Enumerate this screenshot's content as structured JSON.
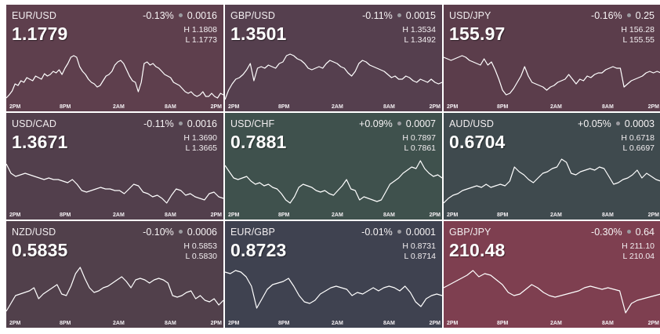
{
  "axis_labels": [
    "2PM",
    "8PM",
    "2AM",
    "8AM",
    "2PM"
  ],
  "tiles": [
    {
      "pair": "EUR/USD",
      "price": "1.1779",
      "change_pct": "-0.13%",
      "change_abs": "0.0016",
      "high": "H 1.1808",
      "low": "L 1.1773",
      "bg": "#5e3f4d",
      "points": [
        64,
        60,
        55,
        46,
        48,
        42,
        44,
        38,
        40,
        42,
        36,
        38,
        40,
        33,
        36,
        34,
        30,
        32,
        28,
        34,
        26,
        20,
        12,
        10,
        12,
        24,
        30,
        34,
        40,
        44,
        46,
        50,
        48,
        42,
        36,
        34,
        30,
        22,
        18,
        16,
        20,
        28,
        36,
        42,
        44,
        56,
        44,
        20,
        18,
        22,
        20,
        24,
        26,
        30,
        34,
        36,
        38,
        44,
        46,
        48,
        52,
        56,
        58,
        56,
        60,
        62,
        60,
        56,
        62,
        62,
        58,
        62,
        64,
        58,
        60
      ]
    },
    {
      "pair": "GBP/USD",
      "price": "1.3501",
      "change_pct": "-0.11%",
      "change_abs": "0.0015",
      "high": "H 1.3534",
      "low": "L 1.3492",
      "bg": "#553f4e",
      "points": [
        66,
        54,
        46,
        40,
        38,
        34,
        28,
        20,
        42,
        26,
        24,
        26,
        22,
        24,
        26,
        20,
        18,
        10,
        8,
        10,
        14,
        16,
        20,
        26,
        28,
        26,
        24,
        26,
        20,
        16,
        18,
        20,
        24,
        26,
        32,
        36,
        30,
        20,
        16,
        18,
        22,
        24,
        26,
        28,
        30,
        34,
        38,
        36,
        40,
        40,
        36,
        38,
        42,
        44,
        40,
        42,
        44,
        40,
        44,
        46,
        44
      ]
    },
    {
      "pair": "USD/JPY",
      "price": "155.97",
      "change_pct": "-0.16%",
      "change_abs": "0.25",
      "high": "H 156.28",
      "low": "L 155.55",
      "bg": "#5b3d4b",
      "points": [
        12,
        14,
        16,
        14,
        12,
        10,
        12,
        16,
        18,
        20,
        22,
        14,
        22,
        18,
        28,
        40,
        54,
        60,
        58,
        52,
        44,
        36,
        24,
        36,
        44,
        46,
        48,
        50,
        54,
        50,
        48,
        44,
        42,
        40,
        34,
        40,
        46,
        40,
        42,
        36,
        38,
        34,
        32,
        32,
        28,
        26,
        24,
        26,
        26,
        50,
        46,
        42,
        40,
        38,
        36,
        32,
        30,
        32,
        30,
        32
      ]
    },
    {
      "pair": "USD/CAD",
      "price": "1.3671",
      "change_pct": "-0.11%",
      "change_abs": "0.0016",
      "high": "H 1.3690",
      "low": "L 1.3665",
      "bg": "#523f4c",
      "points": [
        10,
        22,
        26,
        24,
        22,
        24,
        26,
        28,
        30,
        28,
        30,
        30,
        32,
        34,
        30,
        36,
        44,
        46,
        44,
        42,
        40,
        42,
        42,
        44,
        44,
        48,
        42,
        36,
        38,
        46,
        48,
        52,
        50,
        54,
        60,
        50,
        42,
        44,
        50,
        48,
        52,
        54,
        56,
        48,
        46,
        52,
        54
      ]
    },
    {
      "pair": "USD/CHF",
      "price": "0.7881",
      "change_pct": "+0.09%",
      "change_abs": "0.0007",
      "high": "H 0.7897",
      "low": "L 0.7861",
      "bg": "#3f514d",
      "points": [
        12,
        20,
        28,
        30,
        28,
        26,
        32,
        36,
        34,
        38,
        36,
        40,
        42,
        48,
        56,
        60,
        52,
        40,
        36,
        38,
        40,
        44,
        46,
        44,
        48,
        50,
        44,
        38,
        30,
        42,
        44,
        56,
        52,
        54,
        56,
        58,
        56,
        46,
        36,
        32,
        28,
        22,
        18,
        14,
        16,
        6,
        16,
        22,
        26,
        24,
        28
      ]
    },
    {
      "pair": "AUD/USD",
      "price": "0.6704",
      "change_pct": "+0.05%",
      "change_abs": "0.0003",
      "high": "H 0.6718",
      "low": "L 0.6697",
      "bg": "#3f4a4e",
      "points": [
        60,
        54,
        50,
        48,
        44,
        42,
        40,
        38,
        40,
        36,
        40,
        38,
        36,
        38,
        32,
        14,
        20,
        24,
        30,
        34,
        28,
        22,
        20,
        16,
        14,
        4,
        8,
        22,
        24,
        20,
        18,
        16,
        18,
        14,
        16,
        26,
        36,
        34,
        30,
        28,
        24,
        18,
        28,
        22,
        26,
        30,
        32
      ]
    },
    {
      "pair": "NZD/USD",
      "price": "0.5835",
      "change_pct": "-0.10%",
      "change_abs": "0.0006",
      "high": "H 0.5853",
      "low": "L 0.5830",
      "bg": "#51404b",
      "points": [
        60,
        50,
        40,
        38,
        36,
        34,
        30,
        44,
        38,
        34,
        30,
        26,
        38,
        40,
        28,
        12,
        4,
        18,
        30,
        36,
        34,
        30,
        28,
        24,
        20,
        16,
        22,
        30,
        20,
        18,
        20,
        24,
        20,
        18,
        20,
        24,
        40,
        42,
        40,
        36,
        34,
        44,
        40,
        46,
        48,
        44,
        52,
        46
      ]
    },
    {
      "pair": "EUR/GBP",
      "price": "0.8723",
      "change_pct": "-0.01%",
      "change_abs": "0.0001",
      "high": "H 0.8731",
      "low": "L 0.8714",
      "bg": "#3f4250",
      "points": [
        10,
        12,
        8,
        10,
        16,
        28,
        56,
        44,
        32,
        26,
        24,
        22,
        18,
        28,
        40,
        48,
        50,
        46,
        38,
        34,
        30,
        28,
        30,
        32,
        40,
        36,
        38,
        34,
        30,
        34,
        30,
        28,
        30,
        34,
        28,
        36,
        48,
        54,
        44,
        40,
        38,
        40
      ]
    },
    {
      "pair": "GBP/JPY",
      "price": "210.48",
      "change_pct": "-0.30%",
      "change_abs": "0.64",
      "high": "H 211.10",
      "low": "L 210.04",
      "bg": "#7e3f50",
      "points": [
        30,
        26,
        22,
        18,
        14,
        8,
        16,
        12,
        14,
        20,
        26,
        36,
        40,
        38,
        32,
        26,
        30,
        36,
        40,
        42,
        40,
        38,
        36,
        34,
        30,
        28,
        30,
        32,
        30,
        32,
        34,
        62,
        50,
        46,
        44,
        42,
        40,
        38
      ]
    }
  ]
}
